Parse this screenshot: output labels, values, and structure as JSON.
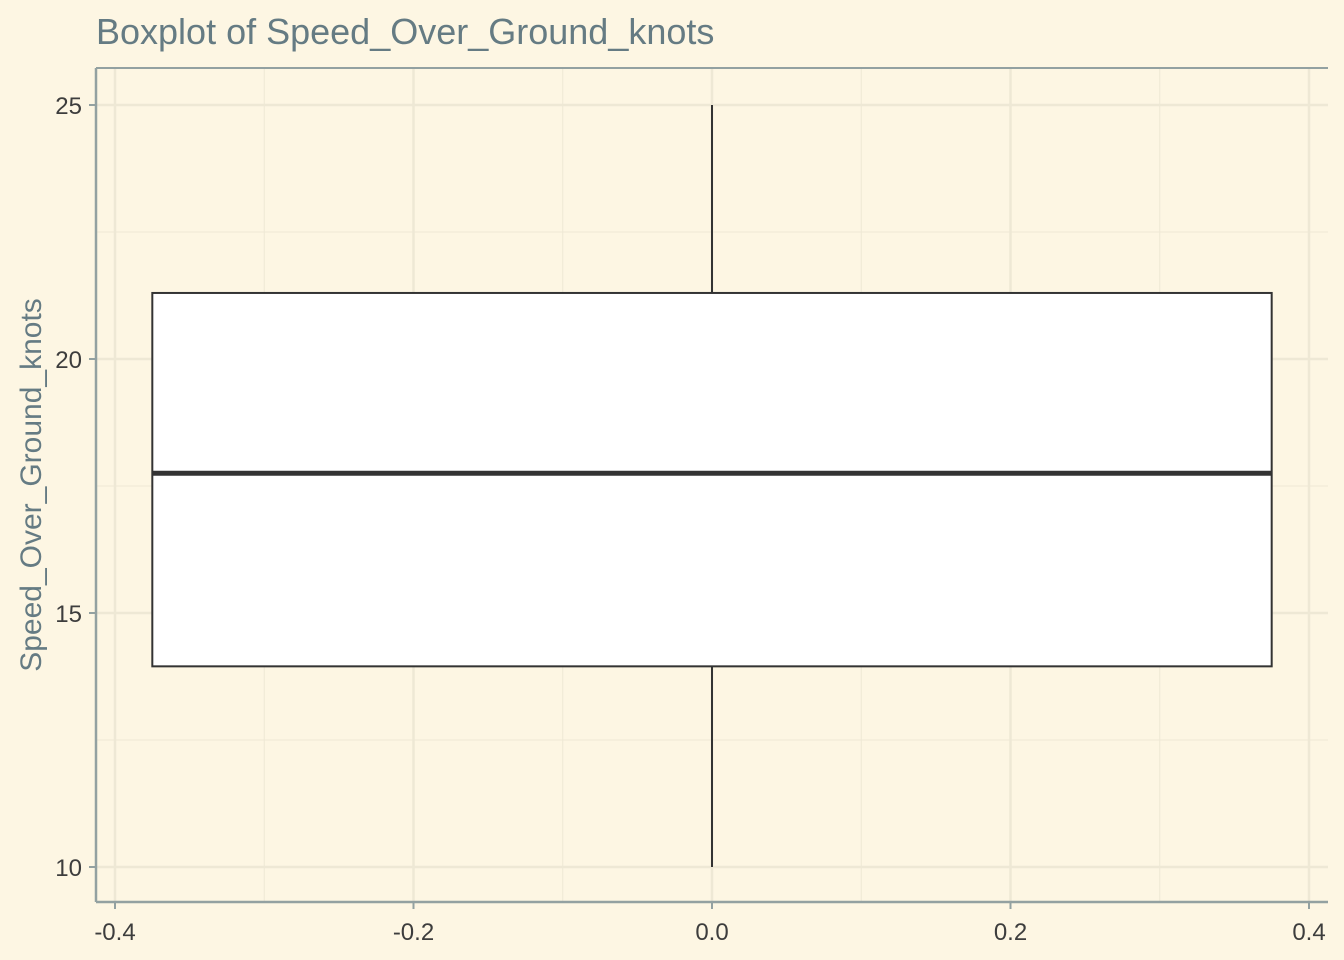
{
  "chart_data": {
    "type": "boxplot",
    "title": "Boxplot of Speed_Over_Ground_knots",
    "xlabel": "",
    "ylabel": "Speed_Over_Ground_knots",
    "xlim": [
      -0.4,
      0.4
    ],
    "ylim": [
      10,
      25
    ],
    "x_ticks": [
      "-0.4",
      "-0.2",
      "0.0",
      "0.2",
      "0.4"
    ],
    "y_ticks": [
      "10",
      "15",
      "20",
      "25"
    ],
    "grid": true,
    "box": {
      "x_left": -0.375,
      "x_right": 0.375,
      "min": 10.0,
      "q1": 13.95,
      "median": 17.75,
      "q3": 21.3,
      "max": 25.0
    },
    "colors": {
      "background": "#fdf6e3",
      "grid": "#eee8d5",
      "axis": "#93a1a1",
      "box_fill": "#ffffff",
      "box_stroke": "#333333"
    }
  }
}
